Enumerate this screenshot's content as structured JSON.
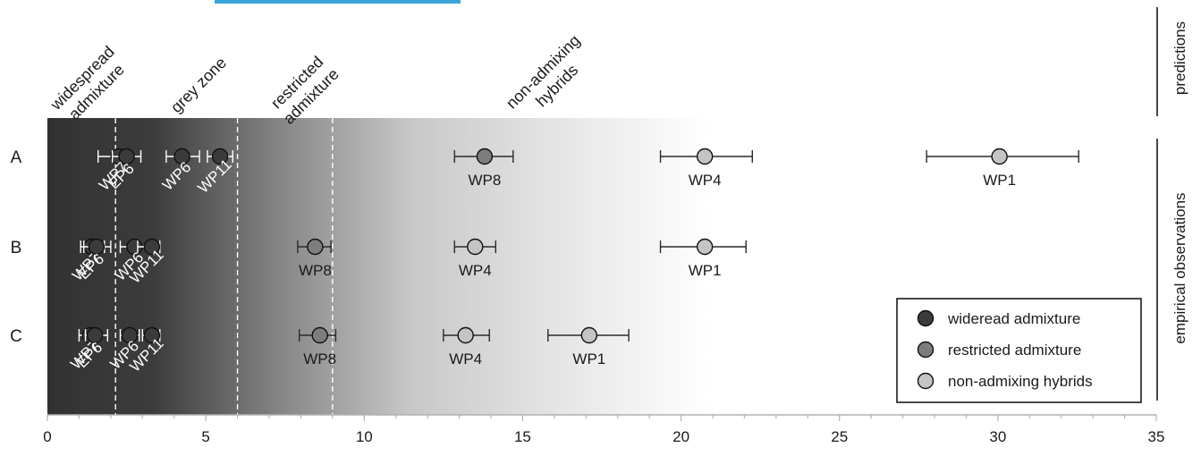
{
  "chart_data": {
    "type": "scatter",
    "title": "",
    "xlabel": "",
    "xlim": [
      0,
      35
    ],
    "x_ticks": [
      "0",
      "5",
      "10",
      "15",
      "20",
      "25",
      "30",
      "35"
    ],
    "rows": [
      "A",
      "B",
      "C"
    ],
    "zones": [
      {
        "label": "widespread admixture",
        "lines": [
          "widespread",
          "admixture"
        ],
        "from": 0,
        "to": 2.15
      },
      {
        "label": "grey zone",
        "lines": [
          "grey zone"
        ],
        "from": 2.15,
        "to": 6.0
      },
      {
        "label": "restricted admixture",
        "lines": [
          "restricted",
          "admixture"
        ],
        "from": 6.0,
        "to": 9.0
      },
      {
        "label": "non-admixing hybrids",
        "lines": [
          "non-admixing",
          "hybrids"
        ],
        "from": 9.0,
        "to": 21.0
      }
    ],
    "zone_boundaries": [
      2.15,
      6.0,
      9.0
    ],
    "side_labels": {
      "top": "predictions",
      "bottom": "empirical observations"
    },
    "categories": [
      {
        "key": "wide",
        "name": "wideread admixture",
        "color": "#3b3b3b"
      },
      {
        "key": "restricted",
        "name": "restricted admixture",
        "color": "#7d7d7d"
      },
      {
        "key": "non",
        "name": "non-admixing hybrids",
        "color": "#c4c4c4"
      }
    ],
    "legend_position": "bottom-right",
    "points": [
      {
        "row": "A",
        "label": "WP7",
        "x": 2.25,
        "lo": 1.6,
        "hi": 2.65,
        "cat": "wide"
      },
      {
        "row": "A",
        "label": "EP6",
        "x": 2.5,
        "lo": 2.05,
        "hi": 2.95,
        "cat": "wide"
      },
      {
        "row": "A",
        "label": "WP6",
        "x": 4.25,
        "lo": 3.75,
        "hi": 4.8,
        "cat": "wide"
      },
      {
        "row": "A",
        "label": "WP11",
        "x": 5.45,
        "lo": 5.05,
        "hi": 5.85,
        "cat": "wide"
      },
      {
        "row": "A",
        "label": "WP8",
        "x": 13.8,
        "lo": 12.85,
        "hi": 14.7,
        "cat": "restricted"
      },
      {
        "row": "A",
        "label": "WP4",
        "x": 20.75,
        "lo": 19.35,
        "hi": 22.25,
        "cat": "non"
      },
      {
        "row": "A",
        "label": "WP1",
        "x": 30.05,
        "lo": 27.75,
        "hi": 32.55,
        "cat": "non"
      },
      {
        "row": "B",
        "label": "WP7",
        "x": 1.4,
        "lo": 1.05,
        "hi": 1.8,
        "cat": "wide"
      },
      {
        "row": "B",
        "label": "EP6",
        "x": 1.55,
        "lo": 1.15,
        "hi": 2.0,
        "cat": "wide"
      },
      {
        "row": "B",
        "label": "WP6",
        "x": 2.75,
        "lo": 2.3,
        "hi": 3.15,
        "cat": "wide"
      },
      {
        "row": "B",
        "label": "WP11",
        "x": 3.3,
        "lo": 2.85,
        "hi": 3.55,
        "cat": "wide"
      },
      {
        "row": "B",
        "label": "WP8",
        "x": 8.45,
        "lo": 7.9,
        "hi": 8.95,
        "cat": "restricted"
      },
      {
        "row": "B",
        "label": "WP4",
        "x": 13.5,
        "lo": 12.85,
        "hi": 14.15,
        "cat": "non"
      },
      {
        "row": "B",
        "label": "WP1",
        "x": 20.75,
        "lo": 19.35,
        "hi": 22.05,
        "cat": "non"
      },
      {
        "row": "C",
        "label": "WP7",
        "x": 1.35,
        "lo": 1.0,
        "hi": 1.65,
        "cat": "wide"
      },
      {
        "row": "C",
        "label": "EP6",
        "x": 1.5,
        "lo": 1.2,
        "hi": 1.9,
        "cat": "wide"
      },
      {
        "row": "C",
        "label": "WP6",
        "x": 2.6,
        "lo": 2.3,
        "hi": 2.9,
        "cat": "wide"
      },
      {
        "row": "C",
        "label": "WP11",
        "x": 3.3,
        "lo": 3.0,
        "hi": 3.55,
        "cat": "wide"
      },
      {
        "row": "C",
        "label": "WP8",
        "x": 8.6,
        "lo": 7.95,
        "hi": 9.1,
        "cat": "restricted"
      },
      {
        "row": "C",
        "label": "WP4",
        "x": 13.2,
        "lo": 12.5,
        "hi": 13.95,
        "cat": "non"
      },
      {
        "row": "C",
        "label": "WP1",
        "x": 17.1,
        "lo": 15.8,
        "hi": 18.35,
        "cat": "non"
      }
    ]
  }
}
